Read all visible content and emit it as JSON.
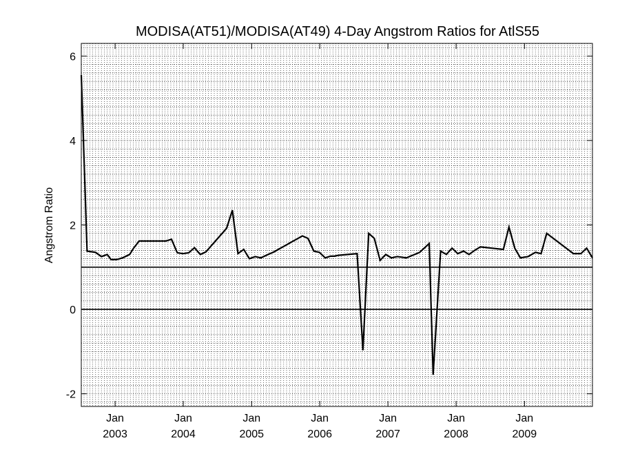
{
  "chart_data": {
    "type": "line",
    "title": "MODISA(AT51)/MODISA(AT49) 4-Day Angstrom Ratios for AtlS55",
    "xlabel": "",
    "ylabel": "Angstrom Ratio",
    "xlim": [
      "2002-07-04",
      "2009-12-31"
    ],
    "ylim": [
      -2.3,
      6.3
    ],
    "y_ticks": [
      -2,
      0,
      2,
      4,
      6
    ],
    "x_ticks": [
      {
        "date": "2003-01-01",
        "month": "Jan",
        "year": "2003"
      },
      {
        "date": "2004-01-01",
        "month": "Jan",
        "year": "2004"
      },
      {
        "date": "2005-01-01",
        "month": "Jan",
        "year": "2005"
      },
      {
        "date": "2006-01-01",
        "month": "Jan",
        "year": "2006"
      },
      {
        "date": "2007-01-01",
        "month": "Jan",
        "year": "2007"
      },
      {
        "date": "2008-01-01",
        "month": "Jan",
        "year": "2008"
      },
      {
        "date": "2009-01-01",
        "month": "Jan",
        "year": "2009"
      }
    ],
    "reference_lines": [
      1,
      0
    ],
    "grid": "dotted",
    "line_color": "#000000",
    "series": [
      {
        "x": [
          "2002-07-04",
          "2002-08-04",
          "2002-09-18",
          "2002-10-20",
          "2002-11-20",
          "2002-12-10",
          "2003-01-10",
          "2003-02-10",
          "2003-03-20",
          "2003-04-10",
          "2003-05-10",
          "2003-06-10",
          "2003-07-20",
          "2003-08-20",
          "2003-09-30",
          "2003-10-30",
          "2003-11-30",
          "2003-12-30",
          "2004-01-30",
          "2004-03-01",
          "2004-04-01",
          "2004-05-01",
          "2004-08-20",
          "2004-09-20",
          "2004-10-20",
          "2004-11-20",
          "2004-12-20",
          "2005-01-20",
          "2005-02-20",
          "2005-03-20",
          "2005-04-30",
          "2005-09-30",
          "2005-10-30",
          "2005-11-30",
          "2005-12-30",
          "2006-01-30",
          "2006-02-28",
          "2006-03-20",
          "2006-04-10",
          "2006-07-20",
          "2006-08-20",
          "2006-09-20",
          "2006-10-20",
          "2006-11-20",
          "2006-12-20",
          "2007-01-20",
          "2007-02-20",
          "2007-04-10",
          "2007-06-20",
          "2007-08-10",
          "2007-08-31",
          "2007-10-10",
          "2007-11-10",
          "2007-12-10",
          "2008-01-10",
          "2008-02-10",
          "2008-03-10",
          "2008-04-10",
          "2008-05-10",
          "2008-09-10",
          "2008-10-10",
          "2008-11-10",
          "2008-12-10",
          "2009-01-20",
          "2009-03-01",
          "2009-03-31",
          "2009-04-30",
          "2009-09-20",
          "2009-10-30",
          "2009-11-30",
          "2009-12-31"
        ],
        "y": [
          5.55,
          1.38,
          1.35,
          1.25,
          1.3,
          1.18,
          1.18,
          1.22,
          1.3,
          1.45,
          1.62,
          1.62,
          1.62,
          1.62,
          1.62,
          1.66,
          1.34,
          1.32,
          1.34,
          1.46,
          1.3,
          1.36,
          1.92,
          2.35,
          1.32,
          1.42,
          1.2,
          1.25,
          1.22,
          1.28,
          1.36,
          1.74,
          1.68,
          1.38,
          1.35,
          1.22,
          1.26,
          1.26,
          1.28,
          1.32,
          -0.97,
          1.8,
          1.68,
          1.16,
          1.3,
          1.22,
          1.25,
          1.22,
          1.35,
          1.56,
          -1.55,
          1.38,
          1.3,
          1.45,
          1.32,
          1.38,
          1.3,
          1.4,
          1.48,
          1.42,
          1.95,
          1.45,
          1.22,
          1.25,
          1.35,
          1.32,
          1.8,
          1.32,
          1.32,
          1.45,
          1.22
        ]
      }
    ]
  }
}
